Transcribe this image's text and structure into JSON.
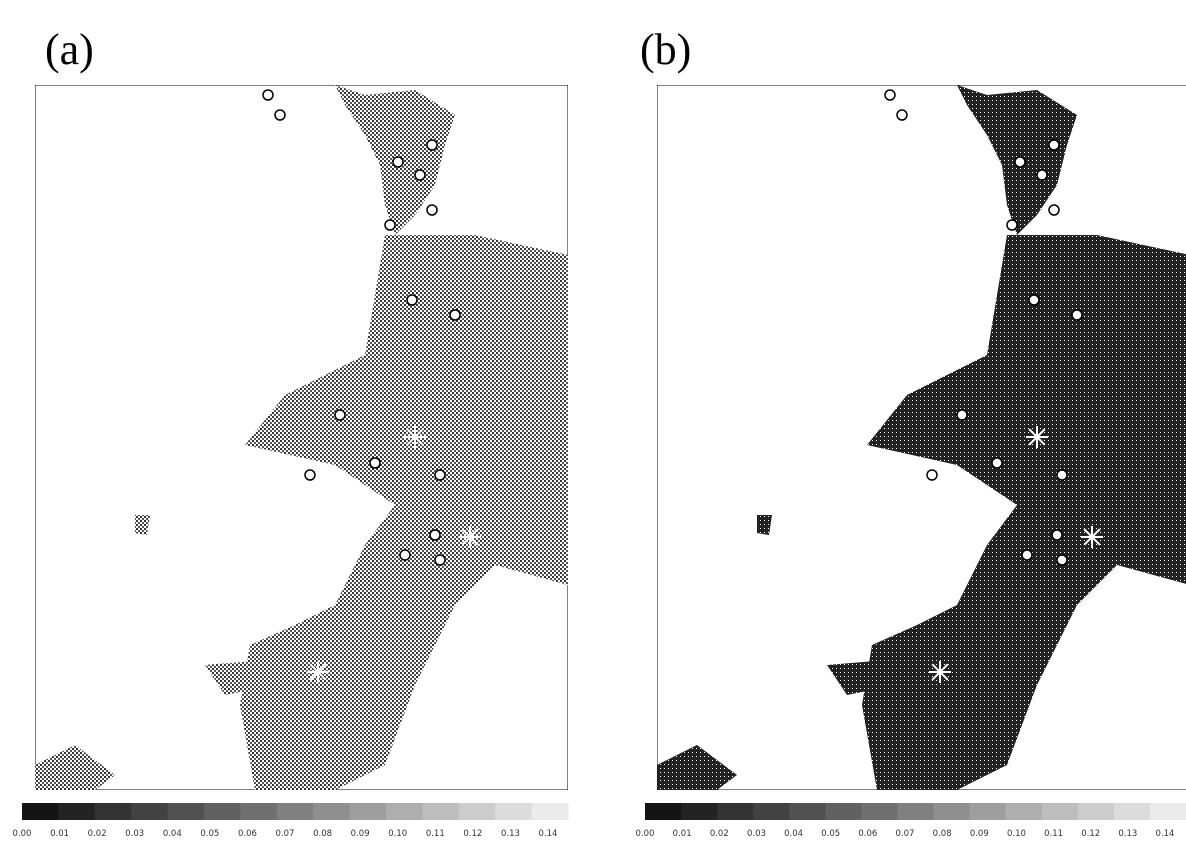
{
  "panels": [
    {
      "label": "(a)",
      "colorbar": {
        "ticks": [
          "0.00",
          "0.01",
          "0.02",
          "0.03",
          "0.04",
          "0.05",
          "0.06",
          "0.07",
          "0.08",
          "0.09",
          "0.10",
          "0.11",
          "0.12",
          "0.13",
          "0.14"
        ]
      }
    },
    {
      "label": "(b)",
      "colorbar": {
        "ticks": [
          "0.00",
          "0.01",
          "0.02",
          "0.03",
          "0.04",
          "0.05",
          "0.06",
          "0.07",
          "0.08",
          "0.09",
          "0.10",
          "0.11",
          "0.12",
          "0.13",
          "0.14"
        ]
      }
    }
  ]
}
